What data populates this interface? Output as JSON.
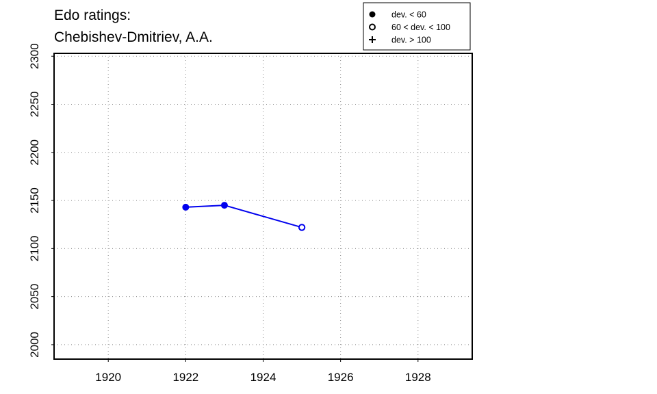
{
  "chart_data": {
    "type": "line",
    "title": [
      "Edo ratings:",
      "Chebishev-Dmitriev, A.A."
    ],
    "xlabel": "",
    "ylabel": "",
    "xlim": [
      1918.6,
      1929.4
    ],
    "ylim": [
      1985,
      2303
    ],
    "x_ticks": [
      1920,
      1922,
      1924,
      1926,
      1928
    ],
    "y_ticks": [
      2000,
      2050,
      2100,
      2150,
      2200,
      2250,
      2300
    ],
    "grid": true,
    "grid_style": "dotted",
    "series": [
      {
        "color": "#0000ee",
        "points": [
          {
            "x": 1922,
            "y": 2143,
            "marker": "filled"
          },
          {
            "x": 1923,
            "y": 2145,
            "marker": "filled"
          },
          {
            "x": 1925,
            "y": 2122,
            "marker": "open"
          }
        ]
      }
    ],
    "legend": {
      "position": "top-right",
      "entries": [
        {
          "symbol": "filled-circle",
          "label": "dev. < 60"
        },
        {
          "symbol": "open-circle",
          "label": "60 < dev. < 100"
        },
        {
          "symbol": "plus",
          "label": "dev. > 100"
        }
      ]
    }
  }
}
